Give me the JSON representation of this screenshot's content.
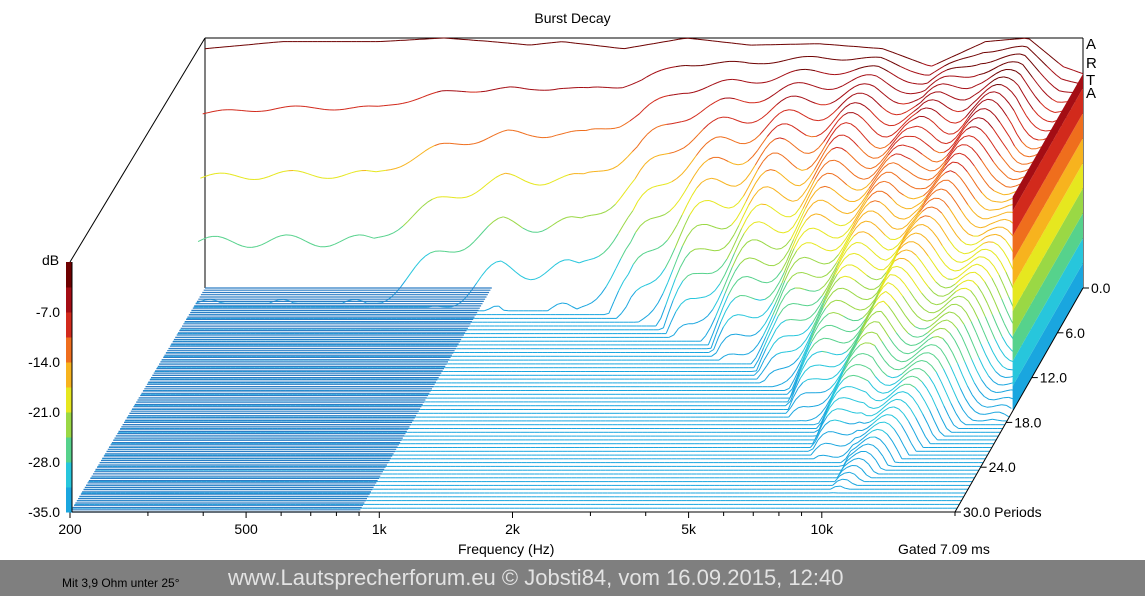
{
  "chart_data": {
    "type": "waterfall",
    "title": "Burst Decay",
    "brand_letters": [
      "A",
      "R",
      "T",
      "A"
    ],
    "xlabel": "Frequency (Hz)",
    "x_scale": "log",
    "xlim": [
      200,
      20000
    ],
    "x_tick_labels": [
      {
        "value": 200,
        "label": "200"
      },
      {
        "value": 500,
        "label": "500"
      },
      {
        "value": 1000,
        "label": "1k"
      },
      {
        "value": 2000,
        "label": "2k"
      },
      {
        "value": 5000,
        "label": "5k"
      },
      {
        "value": 10000,
        "label": "10k"
      }
    ],
    "x_minor_ticks": [
      300,
      400,
      600,
      700,
      800,
      900,
      3000,
      4000,
      6000,
      7000,
      8000,
      9000,
      20000
    ],
    "gate_note": "Gated 7.09 ms",
    "zlabel": "Periods",
    "z_tick_labels": [
      {
        "value": 0,
        "label": "0.0"
      },
      {
        "value": 6,
        "label": "6.0"
      },
      {
        "value": 12,
        "label": "12.0"
      },
      {
        "value": 18,
        "label": "18.0"
      },
      {
        "value": 24,
        "label": "24.0"
      },
      {
        "value": 30,
        "label": "30.0 Periods"
      }
    ],
    "ylabel": "dB",
    "ylim": [
      -35,
      0
    ],
    "y_tick_labels": [
      {
        "value": -7,
        "label": "-7.0"
      },
      {
        "value": -14,
        "label": "-14.0"
      },
      {
        "value": -21,
        "label": "-21.0"
      },
      {
        "value": -28,
        "label": "-28.0"
      },
      {
        "value": -35,
        "label": "-35.0"
      }
    ],
    "colorbar": [
      "#1aa6df",
      "#27c6dc",
      "#56d28c",
      "#9ad845",
      "#e6e71f",
      "#f7b31e",
      "#ef6e1d",
      "#d22a1c",
      "#a40d14",
      "#6e0000"
    ],
    "floor_color": "#2e7dc4",
    "initial_response_db": [
      {
        "f": 200,
        "db": -1.5
      },
      {
        "f": 300,
        "db": -0.5
      },
      {
        "f": 500,
        "db": -0.5
      },
      {
        "f": 700,
        "db": 0
      },
      {
        "f": 900,
        "db": -0.5
      },
      {
        "f": 1100,
        "db": -1
      },
      {
        "f": 1300,
        "db": -0.5
      },
      {
        "f": 1800,
        "db": -1.5
      },
      {
        "f": 2500,
        "db": 0
      },
      {
        "f": 3500,
        "db": -1
      },
      {
        "f": 5000,
        "db": -0.8
      },
      {
        "f": 7000,
        "db": -1.5
      },
      {
        "f": 9000,
        "db": -4
      },
      {
        "f": 12000,
        "db": -0.5
      },
      {
        "f": 15000,
        "db": 0
      },
      {
        "f": 18000,
        "db": -4
      },
      {
        "f": 20000,
        "db": -5
      }
    ],
    "decay_periods_to_floor": [
      {
        "f": 200,
        "periods": 2
      },
      {
        "f": 500,
        "periods": 2
      },
      {
        "f": 1000,
        "periods": 3
      },
      {
        "f": 1500,
        "periods": 3
      },
      {
        "f": 2000,
        "periods": 4
      },
      {
        "f": 3000,
        "periods": 7
      },
      {
        "f": 5000,
        "periods": 12
      },
      {
        "f": 7000,
        "periods": 18
      },
      {
        "f": 10000,
        "periods": 26
      },
      {
        "f": 14000,
        "periods": 22
      },
      {
        "f": 20000,
        "periods": 16
      }
    ]
  },
  "footer": {
    "note": "Mit  3,9 Ohm unter 25°",
    "credit": "www.Lautsprecherforum.eu © Jobsti84, vom 16.09.2015, 12:40"
  }
}
